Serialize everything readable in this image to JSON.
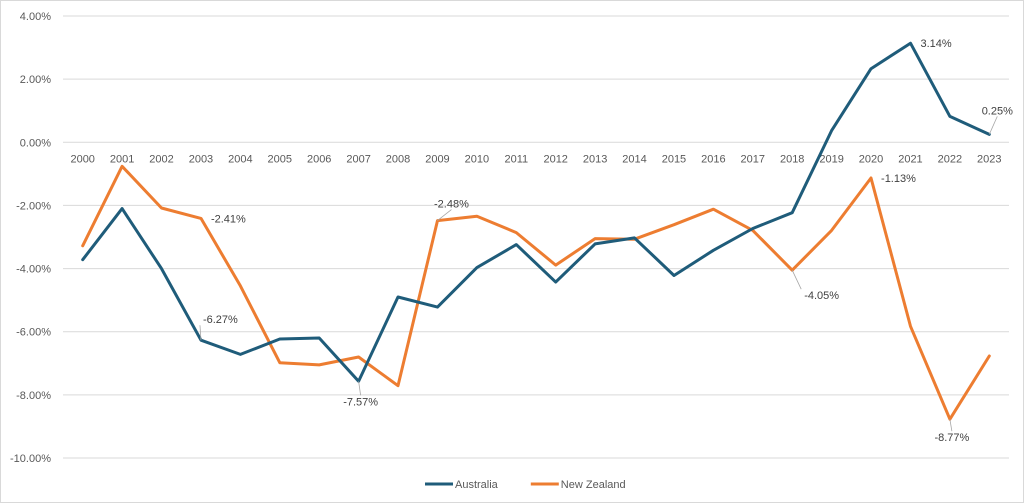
{
  "chart_data": {
    "type": "line",
    "title": "",
    "xlabel": "",
    "ylabel": "",
    "ylim": [
      -10,
      4
    ],
    "y_ticks": [
      4,
      2,
      0,
      -2,
      -4,
      -6,
      -8,
      -10
    ],
    "y_tick_labels": [
      "4.00%",
      "2.00%",
      "0.00%",
      "-2.00%",
      "-4.00%",
      "-6.00%",
      "-8.00%",
      "-10.00%"
    ],
    "grid": true,
    "legend_position": "bottom",
    "categories": [
      "2000",
      "2001",
      "2002",
      "2003",
      "2004",
      "2005",
      "2006",
      "2007",
      "2008",
      "2009",
      "2010",
      "2011",
      "2012",
      "2013",
      "2014",
      "2015",
      "2016",
      "2017",
      "2018",
      "2019",
      "2020",
      "2021",
      "2022",
      "2023"
    ],
    "series": [
      {
        "name": "Australia",
        "color": "#1f5c7a",
        "values": [
          -3.72,
          -2.1,
          -4.0,
          -6.27,
          -6.72,
          -6.23,
          -6.2,
          -7.57,
          -4.9,
          -5.22,
          -3.97,
          -3.24,
          -4.43,
          -3.22,
          -3.03,
          -4.22,
          -3.42,
          -2.73,
          -2.23,
          0.37,
          2.33,
          3.14,
          0.82,
          0.25
        ],
        "labels": [
          {
            "index": 3,
            "text": "-6.27%"
          },
          {
            "index": 7,
            "text": "-7.57%"
          },
          {
            "index": 21,
            "text": "3.14%"
          },
          {
            "index": 23,
            "text": "0.25%"
          }
        ]
      },
      {
        "name": "New Zealand",
        "color": "#ed7d31",
        "values": [
          -3.28,
          -0.76,
          -2.08,
          -2.41,
          -4.55,
          -6.98,
          -7.05,
          -6.8,
          -7.71,
          -2.48,
          -2.34,
          -2.86,
          -3.89,
          -3.05,
          -3.07,
          -2.61,
          -2.12,
          -2.79,
          -4.05,
          -2.79,
          -1.13,
          -5.83,
          -8.77,
          -6.77
        ],
        "labels": [
          {
            "index": 3,
            "text": "-2.41%"
          },
          {
            "index": 9,
            "text": "-2.48%"
          },
          {
            "index": 18,
            "text": "-4.05%"
          },
          {
            "index": 20,
            "text": "-1.13%"
          },
          {
            "index": 22,
            "text": "-8.77%"
          }
        ]
      }
    ]
  }
}
